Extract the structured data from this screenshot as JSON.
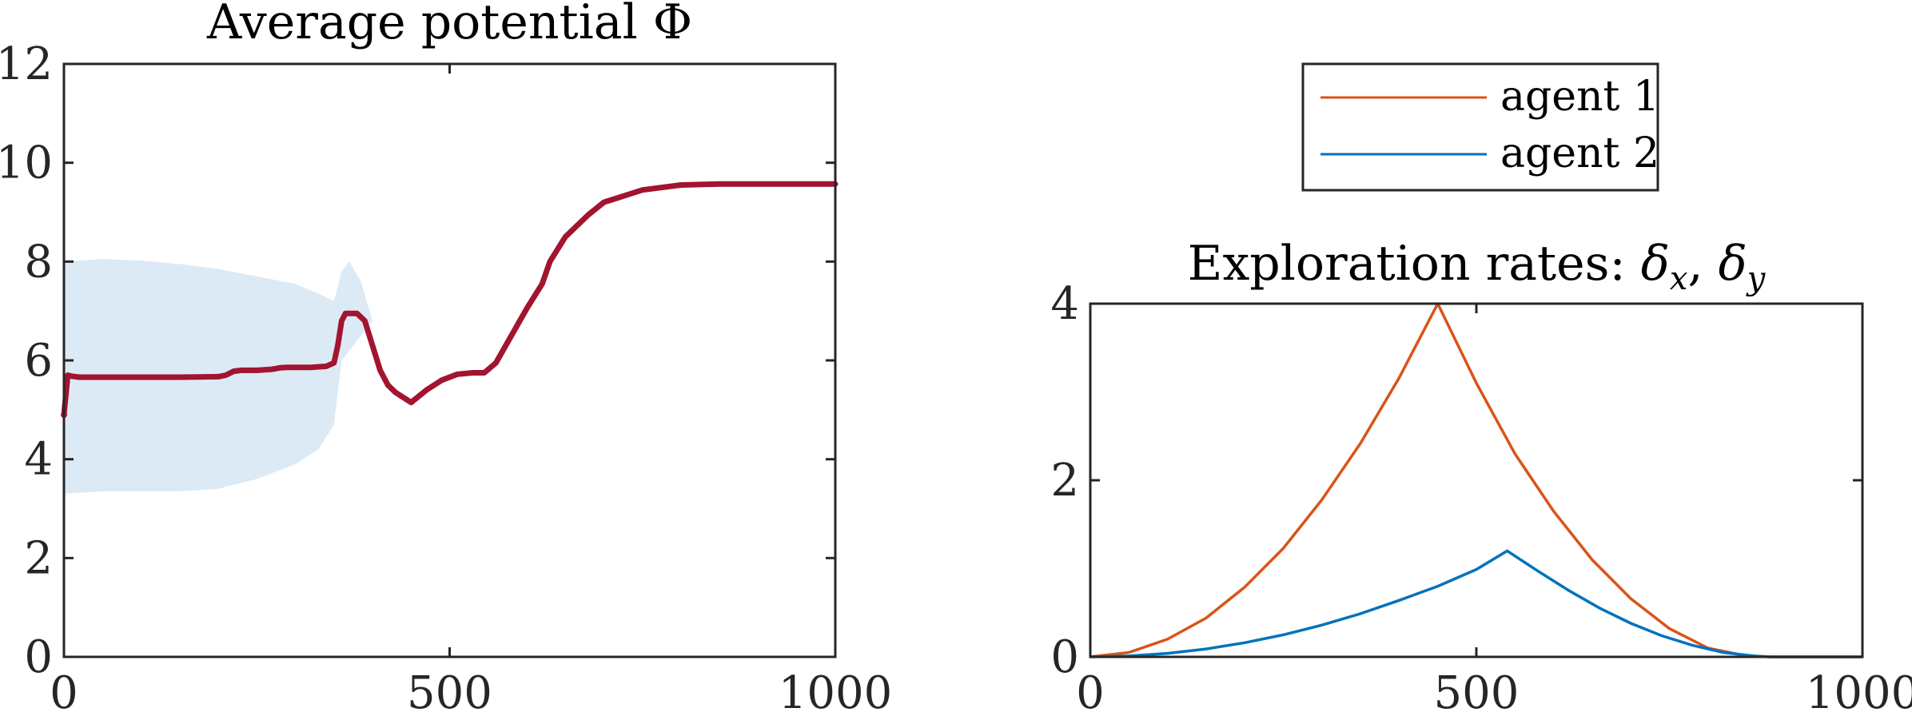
{
  "chart_data": [
    {
      "type": "line",
      "title": "Average potential Φ",
      "xlabel": "",
      "ylabel": "",
      "xlim": [
        0,
        1000
      ],
      "ylim": [
        0,
        12
      ],
      "xticks": [
        0,
        500,
        1000
      ],
      "yticks": [
        0,
        2,
        4,
        6,
        8,
        10,
        12
      ],
      "xtick_labels": [
        "0",
        "500",
        "1000"
      ],
      "ytick_labels": [
        "0",
        "2",
        "4",
        "6",
        "8",
        "10",
        "12"
      ],
      "grid": false,
      "colors": {
        "line": "#A2142F",
        "band": "#DCEAF6"
      },
      "series": [
        {
          "x": [
            0,
            5,
            10,
            20,
            50,
            100,
            150,
            200,
            210,
            220,
            230,
            250,
            270,
            280,
            290,
            300,
            320,
            340,
            350,
            355,
            360,
            365,
            370,
            380,
            390,
            400,
            410,
            420,
            430,
            450,
            470,
            490,
            510,
            530,
            545,
            560,
            580,
            600,
            620,
            630,
            650,
            680,
            700,
            750,
            800,
            850,
            900,
            950,
            1000
          ],
          "y": [
            4.9,
            5.7,
            5.68,
            5.66,
            5.66,
            5.66,
            5.66,
            5.67,
            5.7,
            5.78,
            5.8,
            5.8,
            5.82,
            5.85,
            5.86,
            5.86,
            5.86,
            5.88,
            5.95,
            6.3,
            6.8,
            6.95,
            6.95,
            6.95,
            6.8,
            6.3,
            5.8,
            5.5,
            5.35,
            5.15,
            5.4,
            5.6,
            5.72,
            5.75,
            5.75,
            5.95,
            6.5,
            7.05,
            7.55,
            8.0,
            8.5,
            8.95,
            9.2,
            9.45,
            9.55,
            9.57,
            9.57,
            9.57,
            9.57
          ]
        }
      ],
      "band": {
        "x": [
          0,
          50,
          100,
          150,
          200,
          250,
          300,
          330,
          350,
          360,
          370,
          385,
          400
        ],
        "lower": [
          3.3,
          3.35,
          3.35,
          3.35,
          3.4,
          3.6,
          3.9,
          4.2,
          4.7,
          6.0,
          6.2,
          6.5,
          6.8
        ],
        "upper": [
          8.0,
          8.05,
          8.02,
          7.95,
          7.85,
          7.7,
          7.55,
          7.35,
          7.2,
          7.8,
          8.0,
          7.6,
          6.8
        ]
      }
    },
    {
      "type": "line",
      "title": "Exploration rates: δ_x, δ_y",
      "title_main": "Exploration rates: ",
      "title_delta": "δ",
      "title_sub_x": "x",
      "title_sub_y": "y",
      "title_comma": ", ",
      "xlabel": "",
      "ylabel": "",
      "xlim": [
        0,
        1000
      ],
      "ylim": [
        0,
        4
      ],
      "xticks": [
        0,
        500,
        1000
      ],
      "yticks": [
        0,
        2,
        4
      ],
      "xtick_labels": [
        "0",
        "500",
        "1000"
      ],
      "ytick_labels": [
        "0",
        "2",
        "4"
      ],
      "grid": false,
      "legend": {
        "location": "above",
        "entries": [
          "agent 1",
          "agent 2"
        ]
      },
      "series": [
        {
          "name": "agent 1",
          "color": "#D95319",
          "x": [
            0,
            50,
            100,
            150,
            200,
            250,
            300,
            350,
            400,
            450,
            500,
            550,
            600,
            650,
            700,
            750,
            800,
            850,
            880,
            900,
            950,
            1000
          ],
          "y": [
            0,
            0.05,
            0.2,
            0.44,
            0.79,
            1.23,
            1.78,
            2.42,
            3.16,
            4.0,
            3.1,
            2.3,
            1.65,
            1.1,
            0.66,
            0.32,
            0.1,
            0.01,
            0,
            0,
            0,
            0
          ]
        },
        {
          "name": "agent 2",
          "color": "#0072BD",
          "x": [
            0,
            50,
            100,
            150,
            200,
            250,
            300,
            350,
            400,
            450,
            500,
            540,
            580,
            620,
            660,
            700,
            740,
            780,
            820,
            860,
            880,
            900,
            1000
          ],
          "y": [
            0,
            0.01,
            0.04,
            0.09,
            0.16,
            0.25,
            0.36,
            0.49,
            0.64,
            0.8,
            0.99,
            1.2,
            0.97,
            0.75,
            0.55,
            0.38,
            0.24,
            0.13,
            0.05,
            0.01,
            0,
            0,
            0
          ]
        }
      ]
    }
  ]
}
